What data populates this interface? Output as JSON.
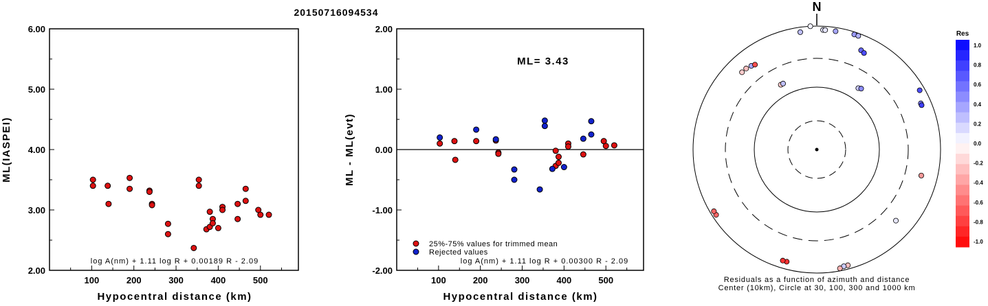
{
  "title": "20150716094534",
  "charts": [
    {
      "type": "scatter",
      "ylabel": "ML(IASPEI)",
      "xlabel": "Hypocentral distance (km)",
      "xlim": [
        0,
        590
      ],
      "ylim": [
        2.0,
        6.0
      ],
      "xticks": [
        100,
        200,
        300,
        400,
        500
      ],
      "yticks": [
        "2.00",
        "3.00",
        "4.00",
        "5.00",
        "6.00"
      ],
      "formula": "log A(nm) + 1.11 log R + 0.00189 R - 2.09",
      "series": [
        {
          "color": "#dd1111",
          "points": [
            [
              103,
              3.5
            ],
            [
              103,
              3.4
            ],
            [
              138,
              3.4
            ],
            [
              140,
              3.1
            ],
            [
              190,
              3.53
            ],
            [
              190,
              3.35
            ],
            [
              237,
              3.32
            ],
            [
              237,
              3.3
            ],
            [
              243,
              3.1
            ],
            [
              243,
              3.08
            ],
            [
              281,
              2.77
            ],
            [
              281,
              2.6
            ],
            [
              342,
              2.37
            ],
            [
              354,
              3.5
            ],
            [
              354,
              3.4
            ],
            [
              372,
              2.68
            ],
            [
              380,
              2.97
            ],
            [
              380,
              2.72
            ],
            [
              387,
              2.85
            ],
            [
              387,
              2.78
            ],
            [
              400,
              2.7
            ],
            [
              410,
              3.05
            ],
            [
              410,
              3.0
            ],
            [
              446,
              3.1
            ],
            [
              446,
              2.85
            ],
            [
              465,
              3.35
            ],
            [
              465,
              3.15
            ],
            [
              495,
              3.0
            ],
            [
              500,
              2.92
            ],
            [
              520,
              2.92
            ]
          ]
        }
      ]
    },
    {
      "type": "scatter",
      "ylabel": "ML - ML(evt)",
      "xlabel": "Hypocentral distance (km)",
      "xlim": [
        0,
        590
      ],
      "ylim": [
        -2.0,
        2.0
      ],
      "xticks": [
        100,
        200,
        300,
        400,
        500
      ],
      "yticks": [
        "-2.00",
        "-1.00",
        "0.00",
        "1.00",
        "2.00"
      ],
      "annotation": "ML= 3.43",
      "formula": "log A(nm) + 1.11 log R + 0.00300 R - 2.09",
      "legend": [
        "25%-75% values for trimmed mean",
        "Rejected values"
      ],
      "series": [
        {
          "name": "25%-75% values for trimmed mean",
          "color": "#dd1111",
          "points": [
            [
              103,
              0.1
            ],
            [
              138,
              0.14
            ],
            [
              140,
              -0.17
            ],
            [
              190,
              0.14
            ],
            [
              237,
              0.15
            ],
            [
              243,
              -0.05
            ],
            [
              243,
              -0.07
            ],
            [
              380,
              -0.02
            ],
            [
              380,
              -0.27
            ],
            [
              387,
              -0.12
            ],
            [
              387,
              -0.22
            ],
            [
              410,
              0.1
            ],
            [
              410,
              0.05
            ],
            [
              446,
              -0.08
            ],
            [
              495,
              0.14
            ],
            [
              500,
              0.06
            ],
            [
              520,
              0.07
            ]
          ]
        },
        {
          "name": "Rejected values",
          "color": "#1122cc",
          "points": [
            [
              103,
              0.2
            ],
            [
              190,
              0.33
            ],
            [
              237,
              0.17
            ],
            [
              281,
              -0.33
            ],
            [
              281,
              -0.5
            ],
            [
              342,
              -0.66
            ],
            [
              354,
              0.48
            ],
            [
              354,
              0.39
            ],
            [
              372,
              -0.32
            ],
            [
              400,
              -0.29
            ],
            [
              446,
              0.18
            ],
            [
              465,
              0.47
            ],
            [
              465,
              0.25
            ]
          ]
        }
      ]
    }
  ],
  "polar": {
    "north_label": "N",
    "caption1": "Residuals as a function of azimuth and distance",
    "caption2": "Center (10km), Circle at 30, 100, 300 and 1000 km",
    "stations": [
      [
        -8,
        0.96,
        0.25
      ],
      [
        -3,
        1.0,
        0.05
      ],
      [
        3,
        0.97,
        0.1
      ],
      [
        4,
        0.97,
        0.1
      ],
      [
        9,
        0.97,
        0.35
      ],
      [
        18,
        0.98,
        0.4
      ],
      [
        20,
        0.98,
        0.3
      ],
      [
        24,
        0.88,
        0.6
      ],
      [
        26,
        0.87,
        0.7
      ],
      [
        34,
        0.6,
        0.2
      ],
      [
        36,
        0.61,
        0.45
      ],
      [
        60,
        0.96,
        0.7
      ],
      [
        66,
        0.92,
        0.5
      ],
      [
        67,
        0.92,
        0.75
      ],
      [
        104,
        0.87,
        -0.4
      ],
      [
        132,
        0.86,
        0.1
      ],
      [
        165,
        0.97,
        -0.25
      ],
      [
        167,
        0.97,
        0.2
      ],
      [
        169,
        0.98,
        -0.3
      ],
      [
        195,
        0.94,
        -0.8
      ],
      [
        197,
        0.94,
        -0.8
      ],
      [
        237,
        0.97,
        -0.6
      ],
      [
        239,
        0.97,
        -0.6
      ],
      [
        316,
        0.87,
        -0.2
      ],
      [
        319,
        0.87,
        -0.25
      ],
      [
        322,
        0.86,
        0.35
      ],
      [
        324,
        0.85,
        -0.7
      ],
      [
        331,
        0.6,
        -0.2
      ],
      [
        333,
        0.6,
        0.25
      ]
    ]
  },
  "colorbar": {
    "title": "Res",
    "labels": [
      "1.0",
      "0.8",
      "0.6",
      "0.4",
      "0.2",
      "0.0",
      "-0.2",
      "-0.4",
      "-0.6",
      "-0.8",
      "-1.0"
    ]
  }
}
